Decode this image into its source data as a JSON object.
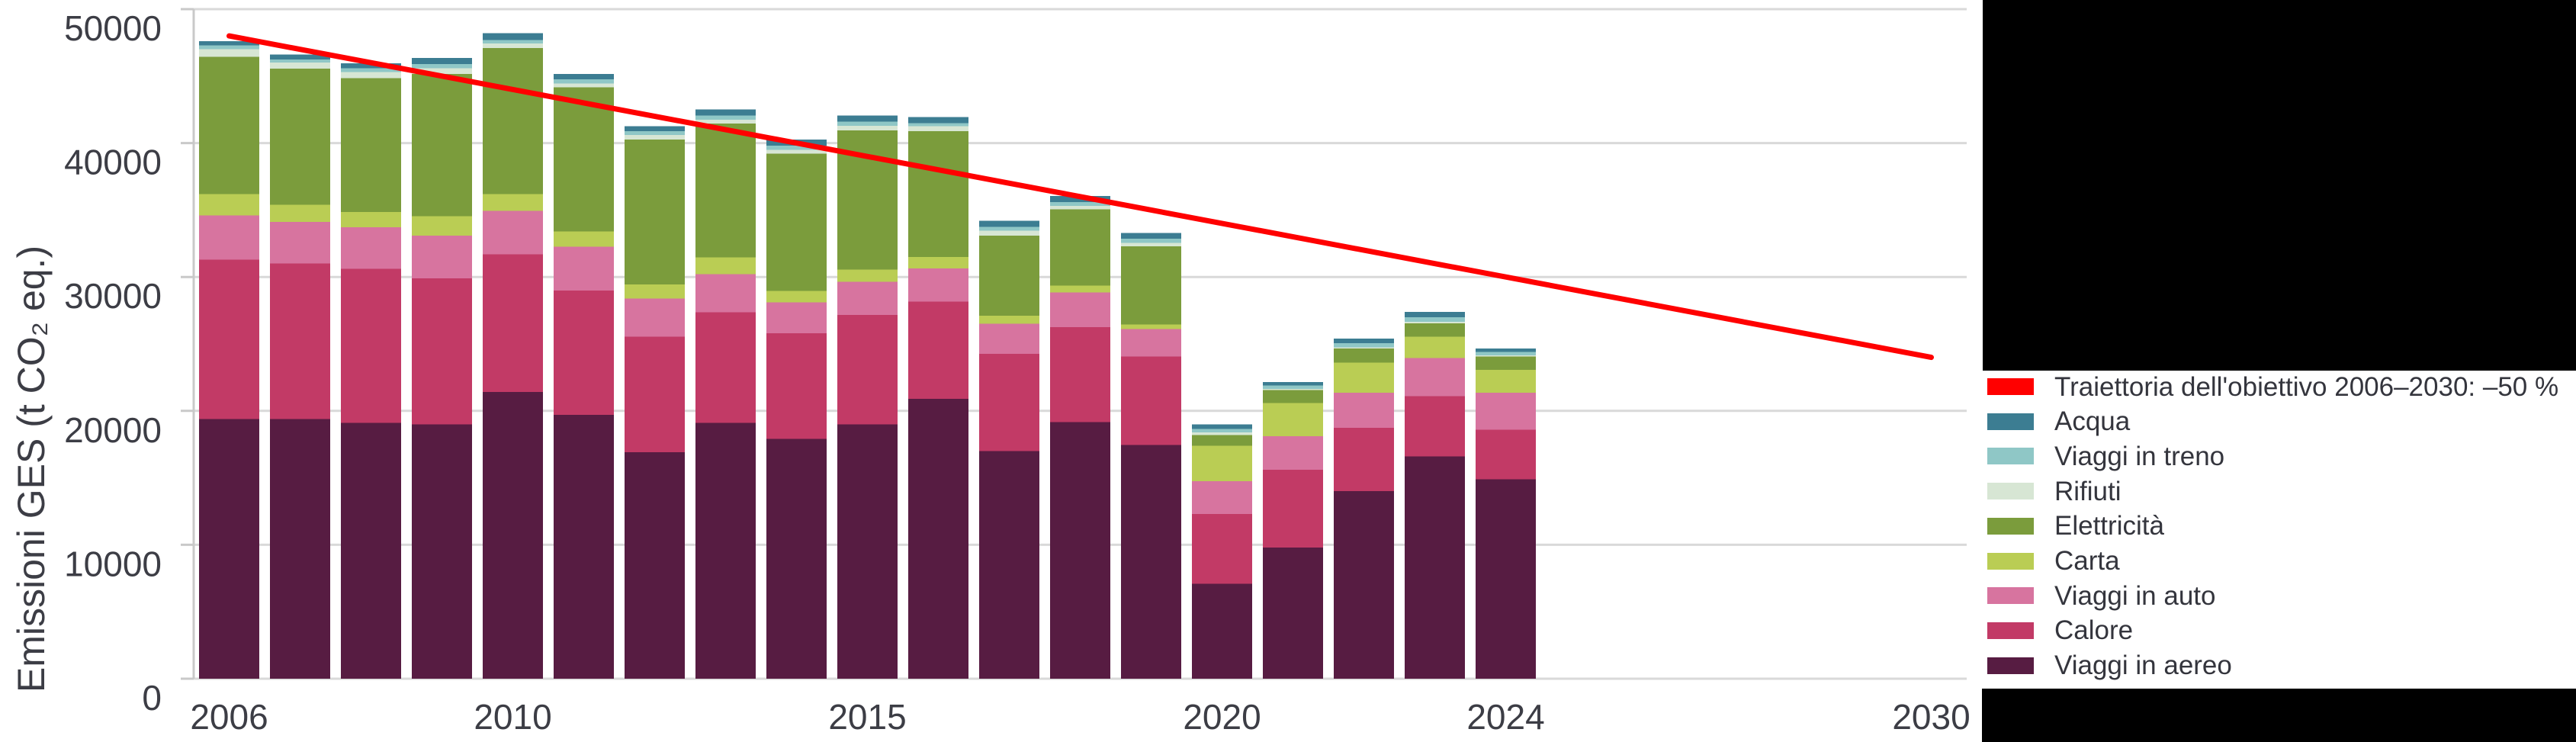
{
  "chart_data": {
    "type": "bar",
    "stacked": true,
    "title": "",
    "xlabel": "",
    "ylabel": "Emissioni GES (t CO₂ eq.)",
    "ylim": [
      0,
      50000
    ],
    "ytick_values": [
      0,
      10000,
      20000,
      30000,
      40000,
      50000
    ],
    "ytick_labels": [
      "0",
      "10000",
      "20000",
      "30000",
      "40000",
      "50000"
    ],
    "x_domain": [
      2006,
      2030
    ],
    "xtick_years": [
      2006,
      2010,
      2015,
      2020,
      2024,
      2030
    ],
    "xtick_labels": [
      "2006",
      "2010",
      "2015",
      "2020",
      "2024",
      "2030"
    ],
    "grid": "horizontal",
    "grid_color": "#d9d9d9",
    "axis_line_color": "#c9c9c9",
    "tick_label_color": "#3c3d45",
    "legend_position": "right",
    "categories": [
      2006,
      2007,
      2008,
      2009,
      2010,
      2011,
      2012,
      2013,
      2014,
      2015,
      2016,
      2017,
      2018,
      2019,
      2020,
      2021,
      2022,
      2023,
      2024
    ],
    "series": [
      {
        "id": "viaggi-in-aereo",
        "name": "Viaggi in aereo",
        "color": "#571c42",
        "values": [
          19400,
          19400,
          19100,
          19000,
          21400,
          19700,
          16900,
          19100,
          17900,
          19000,
          20900,
          17000,
          19150,
          17450,
          7100,
          9800,
          14000,
          16600,
          14900
        ]
      },
      {
        "id": "calore",
        "name": "Calore",
        "color": "#c23a66",
        "values": [
          11900,
          11600,
          11500,
          10900,
          10300,
          9300,
          8650,
          8250,
          7900,
          8150,
          7250,
          7250,
          7100,
          6600,
          5200,
          5800,
          4750,
          4500,
          3700
        ]
      },
      {
        "id": "viaggi-in-auto",
        "name": "Viaggi in auto",
        "color": "#d7749f",
        "values": [
          3300,
          3100,
          3100,
          3200,
          3250,
          3250,
          2850,
          2850,
          2300,
          2500,
          2500,
          2250,
          2600,
          2050,
          2450,
          2500,
          2600,
          2850,
          2750
        ]
      },
      {
        "id": "carta",
        "name": "Carta",
        "color": "#bacd54",
        "values": [
          1600,
          1300,
          1150,
          1450,
          1250,
          1150,
          1050,
          1250,
          850,
          900,
          850,
          600,
          500,
          350,
          2650,
          2500,
          2250,
          1600,
          1700
        ]
      },
      {
        "id": "elettricita",
        "name": "Elettricità",
        "color": "#7b9c3c",
        "values": [
          10250,
          10150,
          10000,
          10600,
          10900,
          10750,
          10800,
          10000,
          10250,
          10400,
          9400,
          6000,
          5700,
          5850,
          800,
          950,
          1050,
          1000,
          1000
        ]
      },
      {
        "id": "rifiuti",
        "name": "Rifiuti",
        "color": "#d7e6d4",
        "values": [
          550,
          450,
          450,
          450,
          350,
          300,
          350,
          300,
          300,
          350,
          350,
          350,
          250,
          250,
          200,
          100,
          100,
          100,
          100
        ]
      },
      {
        "id": "viaggi-in-treno",
        "name": "Viaggi in treno",
        "color": "#8fc7c6",
        "values": [
          300,
          250,
          300,
          300,
          250,
          300,
          300,
          300,
          300,
          300,
          250,
          300,
          300,
          300,
          250,
          250,
          300,
          350,
          250
        ]
      },
      {
        "id": "acqua",
        "name": "Acqua",
        "color": "#3c7d92",
        "values": [
          300,
          350,
          350,
          450,
          500,
          400,
          350,
          450,
          450,
          450,
          450,
          450,
          450,
          450,
          350,
          250,
          350,
          400,
          250
        ]
      }
    ],
    "target_line": {
      "label": "Traiettoria dell'obiettivo 2006–2030: –50 %",
      "color": "#ff0000",
      "from": {
        "year": 2006,
        "value": 48000
      },
      "to": {
        "year": 2030,
        "value": 24000
      }
    },
    "legend": [
      {
        "label": "Traiettoria dell'obiettivo 2006–2030: –50 %",
        "color": "#ff0000"
      },
      {
        "label": "Acqua",
        "color": "#3c7d92"
      },
      {
        "label": "Viaggi in treno",
        "color": "#8fc7c6"
      },
      {
        "label": "Rifiuti",
        "color": "#d7e6d4"
      },
      {
        "label": "Elettricità",
        "color": "#7b9c3c"
      },
      {
        "label": "Carta",
        "color": "#bacd54"
      },
      {
        "label": "Viaggi in auto",
        "color": "#d7749f"
      },
      {
        "label": "Calore",
        "color": "#c23a66"
      },
      {
        "label": "Viaggi in aereo",
        "color": "#571c42"
      }
    ]
  }
}
